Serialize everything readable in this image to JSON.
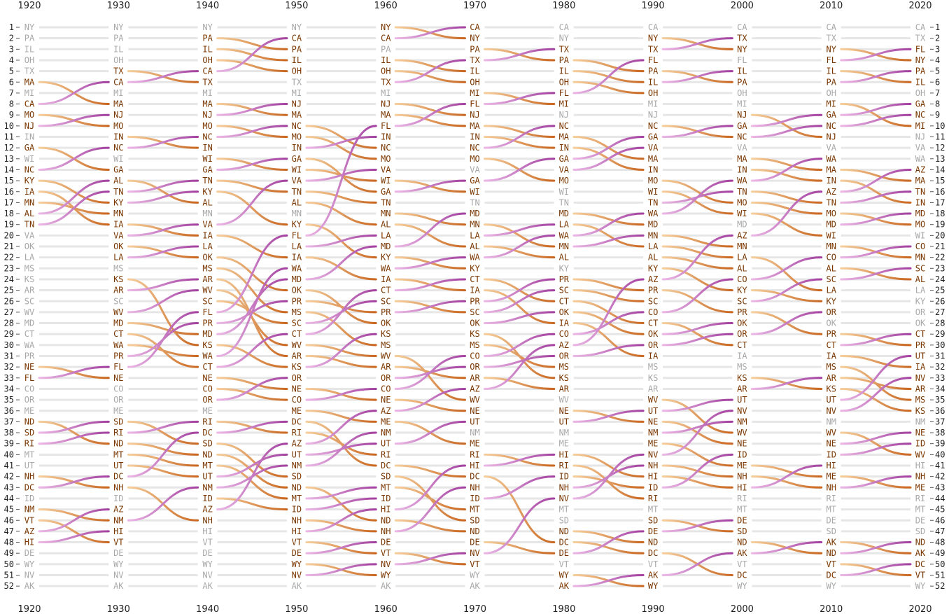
{
  "chart_data": {
    "type": "line",
    "title": "",
    "xlabel": "",
    "ylabel": "",
    "x": [
      1920,
      1930,
      1940,
      1950,
      1960,
      1970,
      1980,
      1990,
      2000,
      2010,
      2020
    ],
    "ylim": [
      1,
      52
    ],
    "y_reversed": true,
    "rank_ticks": [
      1,
      2,
      3,
      4,
      5,
      6,
      7,
      8,
      9,
      10,
      11,
      12,
      13,
      14,
      15,
      16,
      17,
      18,
      19,
      20,
      21,
      22,
      23,
      24,
      25,
      26,
      27,
      28,
      29,
      30,
      31,
      32,
      33,
      34,
      35,
      36,
      37,
      38,
      39,
      40,
      41,
      42,
      43,
      44,
      45,
      46,
      47,
      48,
      49,
      50,
      51,
      52
    ],
    "rankings": [
      [
        "NY",
        "PA",
        "IL",
        "OH",
        "TX",
        "MA",
        "MI",
        "CA",
        "MO",
        "NJ",
        "IN",
        "GA",
        "WI",
        "NC",
        "KY",
        "IA",
        "MN",
        "AL",
        "TN",
        "VA",
        "OK",
        "LA",
        "MS",
        "KS",
        "AR",
        "SC",
        "WV",
        "MD",
        "CT",
        "WA",
        "PR",
        "NE",
        "FL",
        "CO",
        "OR",
        "ME",
        "ND",
        "SD",
        "RI",
        "MT",
        "UT",
        "NH",
        "DC",
        "ID",
        "NM",
        "VT",
        "AZ",
        "HI",
        "DE",
        "WY",
        "NV",
        "AK"
      ],
      [
        "NY",
        "PA",
        "IL",
        "OH",
        "TX",
        "CA",
        "MI",
        "MA",
        "NJ",
        "MO",
        "IN",
        "NC",
        "WI",
        "GA",
        "AL",
        "TN",
        "KY",
        "MN",
        "IA",
        "VA",
        "OK",
        "LA",
        "MS",
        "KS",
        "AR",
        "SC",
        "WV",
        "MD",
        "CT",
        "WA",
        "PR",
        "FL",
        "NE",
        "CO",
        "OR",
        "ME",
        "SD",
        "RI",
        "ND",
        "MT",
        "UT",
        "DC",
        "NH",
        "ID",
        "AZ",
        "NM",
        "HI",
        "VT",
        "DE",
        "WY",
        "NV",
        "AK"
      ],
      [
        "NY",
        "PA",
        "IL",
        "OH",
        "CA",
        "TX",
        "MI",
        "MA",
        "NJ",
        "MO",
        "NC",
        "IN",
        "WI",
        "GA",
        "TN",
        "KY",
        "AL",
        "MN",
        "VA",
        "IA",
        "LA",
        "OK",
        "MS",
        "AR",
        "WV",
        "SC",
        "FL",
        "PR",
        "MD",
        "KS",
        "WA",
        "CT",
        "NE",
        "CO",
        "OR",
        "ME",
        "RI",
        "DC",
        "SD",
        "ND",
        "MT",
        "UT",
        "NM",
        "ID",
        "AZ",
        "NH",
        "HI",
        "VT",
        "DE",
        "WY",
        "NV",
        "AK"
      ],
      [
        "NY",
        "CA",
        "PA",
        "IL",
        "OH",
        "TX",
        "MI",
        "NJ",
        "MA",
        "NC",
        "MO",
        "IN",
        "GA",
        "WI",
        "VA",
        "TN",
        "AL",
        "MN",
        "KY",
        "FL",
        "LA",
        "IA",
        "WA",
        "MD",
        "OK",
        "PR",
        "MS",
        "SC",
        "CT",
        "WV",
        "AR",
        "KS",
        "OR",
        "NE",
        "CO",
        "ME",
        "DC",
        "RI",
        "AZ",
        "UT",
        "NM",
        "SD",
        "ND",
        "MT",
        "ID",
        "NH",
        "HI",
        "VT",
        "DE",
        "WY",
        "NV",
        "AK"
      ],
      [
        "NY",
        "CA",
        "PA",
        "IL",
        "OH",
        "TX",
        "MI",
        "NJ",
        "MA",
        "FL",
        "IN",
        "NC",
        "MO",
        "VA",
        "WI",
        "GA",
        "TN",
        "MN",
        "AL",
        "LA",
        "MD",
        "KY",
        "WA",
        "IA",
        "CT",
        "SC",
        "PR",
        "OK",
        "KS",
        "MS",
        "WV",
        "AR",
        "OR",
        "CO",
        "NE",
        "AZ",
        "ME",
        "NM",
        "UT",
        "RI",
        "DC",
        "SD",
        "MT",
        "ID",
        "HI",
        "ND",
        "NH",
        "DE",
        "VT",
        "NV",
        "WY",
        "AK"
      ],
      [
        "CA",
        "NY",
        "PA",
        "TX",
        "IL",
        "OH",
        "MI",
        "FL",
        "NJ",
        "MA",
        "IN",
        "NC",
        "MO",
        "VA",
        "GA",
        "WI",
        "TN",
        "MD",
        "MN",
        "LA",
        "AL",
        "WA",
        "KY",
        "CT",
        "IA",
        "PR",
        "SC",
        "OK",
        "KS",
        "MS",
        "CO",
        "OR",
        "AR",
        "AZ",
        "WV",
        "NE",
        "UT",
        "NM",
        "ME",
        "RI",
        "HI",
        "DC",
        "NH",
        "ID",
        "MT",
        "SD",
        "ND",
        "DE",
        "NV",
        "VT",
        "WY",
        "AK"
      ],
      [
        "CA",
        "NY",
        "TX",
        "PA",
        "IL",
        "OH",
        "FL",
        "MI",
        "NJ",
        "NC",
        "MA",
        "IN",
        "GA",
        "VA",
        "MO",
        "WI",
        "TN",
        "MD",
        "LA",
        "WA",
        "MN",
        "AL",
        "KY",
        "PR",
        "SC",
        "CT",
        "OK",
        "IA",
        "CO",
        "AZ",
        "OR",
        "MS",
        "KS",
        "AR",
        "WV",
        "NE",
        "UT",
        "NM",
        "ME",
        "HI",
        "RI",
        "ID",
        "NH",
        "NV",
        "MT",
        "SD",
        "ND",
        "DC",
        "DE",
        "VT",
        "WY",
        "AK"
      ],
      [
        "CA",
        "NY",
        "TX",
        "FL",
        "PA",
        "IL",
        "OH",
        "MI",
        "NJ",
        "NC",
        "GA",
        "VA",
        "MA",
        "IN",
        "MO",
        "WI",
        "TN",
        "WA",
        "MD",
        "MN",
        "LA",
        "AL",
        "KY",
        "AZ",
        "PR",
        "SC",
        "CO",
        "CT",
        "OK",
        "OR",
        "IA",
        "MS",
        "KS",
        "AR",
        "WV",
        "UT",
        "NE",
        "NM",
        "ME",
        "NV",
        "NH",
        "HI",
        "ID",
        "RI",
        "MT",
        "SD",
        "DE",
        "ND",
        "DC",
        "VT",
        "AK",
        "WY"
      ],
      [
        "CA",
        "TX",
        "NY",
        "FL",
        "IL",
        "PA",
        "OH",
        "MI",
        "NJ",
        "GA",
        "NC",
        "VA",
        "MA",
        "IN",
        "WA",
        "TN",
        "MO",
        "WI",
        "MD",
        "AZ",
        "MN",
        "LA",
        "AL",
        "CO",
        "KY",
        "SC",
        "PR",
        "OK",
        "OR",
        "CT",
        "IA",
        "MS",
        "KS",
        "AR",
        "UT",
        "NV",
        "NM",
        "WV",
        "NE",
        "ID",
        "ME",
        "NH",
        "HI",
        "RI",
        "MT",
        "DE",
        "SD",
        "ND",
        "AK",
        "VT",
        "DC",
        "WY"
      ],
      [
        "CA",
        "TX",
        "NY",
        "FL",
        "IL",
        "PA",
        "OH",
        "MI",
        "GA",
        "NC",
        "NJ",
        "VA",
        "WA",
        "MA",
        "IN",
        "AZ",
        "TN",
        "MO",
        "MD",
        "WI",
        "MN",
        "CO",
        "AL",
        "SC",
        "LA",
        "KY",
        "OR",
        "OK",
        "PR",
        "CT",
        "IA",
        "MS",
        "AR",
        "KS",
        "UT",
        "NV",
        "NM",
        "WV",
        "NE",
        "ID",
        "HI",
        "ME",
        "NH",
        "RI",
        "MT",
        "DE",
        "SD",
        "AK",
        "ND",
        "VT",
        "DC",
        "WY"
      ],
      [
        "CA",
        "TX",
        "FL",
        "NY",
        "PA",
        "IL",
        "OH",
        "GA",
        "NC",
        "MI",
        "NJ",
        "VA",
        "WA",
        "AZ",
        "MA",
        "TN",
        "IN",
        "MD",
        "MO",
        "WI",
        "CO",
        "MN",
        "SC",
        "AL",
        "LA",
        "KY",
        "OR",
        "OK",
        "CT",
        "PR",
        "UT",
        "IA",
        "NV",
        "AR",
        "MS",
        "KS",
        "NM",
        "NE",
        "ID",
        "WV",
        "HI",
        "NH",
        "ME",
        "RI",
        "MT",
        "DE",
        "SD",
        "ND",
        "AK",
        "DC",
        "VT",
        "WY"
      ]
    ]
  },
  "colors": {
    "rise_dark": "#a3409f",
    "rise_light": "#ecb8e6",
    "fall_dark": "#c9661f",
    "fall_light": "#f6cf9e",
    "label_changed": "#7a3700",
    "label_static": "#a8a8a8",
    "guide": "#e6e6e6",
    "label_bg": "#ffffff"
  }
}
